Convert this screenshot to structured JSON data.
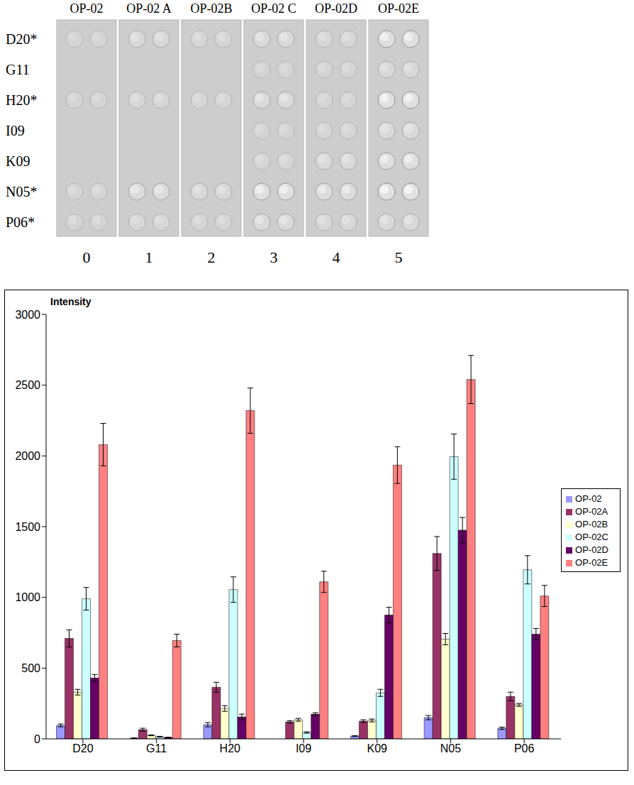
{
  "blot": {
    "columns": [
      "OP-02",
      "OP-02 A",
      "OP-02B",
      "OP-02 C",
      "OP-02D",
      "OP-02E"
    ],
    "column_numbers": [
      0,
      1,
      2,
      3,
      4,
      5
    ],
    "rows": [
      "D20*",
      "G11",
      "H20*",
      "I09",
      "K09",
      "N05*",
      "P06*"
    ],
    "spots": [
      [
        true,
        true,
        true,
        true,
        true,
        true
      ],
      [
        false,
        false,
        false,
        true,
        true,
        true
      ],
      [
        true,
        true,
        true,
        true,
        true,
        true
      ],
      [
        false,
        false,
        false,
        true,
        true,
        true
      ],
      [
        false,
        false,
        false,
        true,
        true,
        true
      ],
      [
        true,
        true,
        true,
        true,
        true,
        true
      ],
      [
        true,
        true,
        true,
        true,
        true,
        true
      ]
    ]
  },
  "chart_data": {
    "type": "bar",
    "ylabel": "Intensity",
    "categories": [
      "D20",
      "G11",
      "H20",
      "I09",
      "K09",
      "N05",
      "P06"
    ],
    "series": [
      {
        "name": "OP-02",
        "color": "#9999ff",
        "values": [
          95,
          5,
          100,
          0,
          20,
          150,
          75
        ],
        "errors": [
          10,
          2,
          15,
          0,
          3,
          15,
          8
        ]
      },
      {
        "name": "OP-02A",
        "color": "#993366",
        "values": [
          710,
          65,
          365,
          120,
          125,
          1310,
          300
        ],
        "errors": [
          60,
          10,
          35,
          8,
          10,
          120,
          30
        ]
      },
      {
        "name": "OP-02B",
        "color": "#ffffcc",
        "values": [
          330,
          25,
          215,
          135,
          130,
          705,
          240
        ],
        "errors": [
          20,
          3,
          20,
          10,
          10,
          40,
          10
        ]
      },
      {
        "name": "OP-02C",
        "color": "#ccffff",
        "values": [
          990,
          15,
          1055,
          45,
          325,
          1995,
          1195
        ],
        "errors": [
          80,
          3,
          90,
          5,
          25,
          160,
          100
        ]
      },
      {
        "name": "OP-02D",
        "color": "#660066",
        "values": [
          430,
          10,
          155,
          175,
          875,
          1475,
          740
        ],
        "errors": [
          25,
          2,
          20,
          10,
          55,
          90,
          40
        ]
      },
      {
        "name": "OP-02E",
        "color": "#ff8080",
        "values": [
          2080,
          695,
          2320,
          1110,
          1935,
          2540,
          1010
        ],
        "errors": [
          150,
          45,
          160,
          75,
          130,
          170,
          75
        ]
      }
    ],
    "ylim": [
      0,
      3000
    ],
    "yticks": [
      0,
      500,
      1000,
      1500,
      2000,
      2500,
      3000
    ],
    "grid": false,
    "legend": "right"
  }
}
